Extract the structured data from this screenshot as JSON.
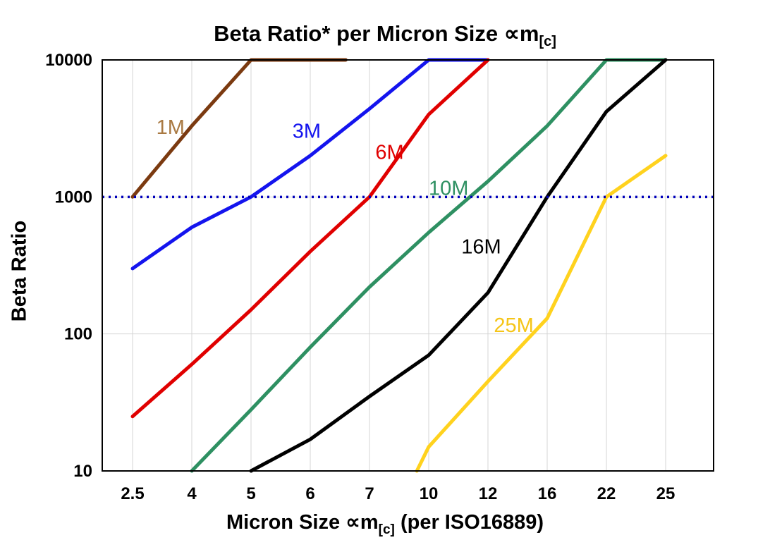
{
  "chart_data": {
    "type": "line",
    "title": {
      "main": "Beta Ratio* per Micron Size ∝m",
      "sub": "[c]"
    },
    "xlabel": {
      "main": "Micron Size ∝m",
      "sub": "[c]",
      "post": " (per ISO16889)"
    },
    "ylabel": "Beta Ratio",
    "x_categories": [
      "2.5",
      "4",
      "5",
      "6",
      "7",
      "10",
      "12",
      "16",
      "22",
      "25"
    ],
    "y_ticks": [
      10,
      100,
      1000,
      10000
    ],
    "y_scale": "log",
    "ylim": [
      10,
      10000
    ],
    "grid": "light gray vertical lines at each x category, horizontal lines at decades",
    "legend_position": "inline labels on lines",
    "reference_line": {
      "value": 1000,
      "color": "#0000BB",
      "style": "dotted"
    },
    "series": [
      {
        "name": "1M",
        "color": "#7B3A10",
        "label_color": "#A97942",
        "label_x": 0.4,
        "label_y": 3200,
        "points": [
          [
            0,
            1000
          ],
          [
            1,
            3300
          ],
          [
            2,
            10000
          ],
          [
            3.6,
            10000
          ]
        ]
      },
      {
        "name": "3M",
        "color": "#1414EE",
        "label_color": "#1414EE",
        "label_x": 2.7,
        "label_y": 3000,
        "points": [
          [
            0,
            300
          ],
          [
            1,
            600
          ],
          [
            2,
            1000
          ],
          [
            3,
            2000
          ],
          [
            4,
            4400
          ],
          [
            5,
            10000
          ],
          [
            6,
            10000
          ]
        ]
      },
      {
        "name": "6M",
        "color": "#E00000",
        "label_color": "#E00000",
        "label_x": 4.1,
        "label_y": 2100,
        "points": [
          [
            0,
            25
          ],
          [
            1,
            60
          ],
          [
            2,
            150
          ],
          [
            3,
            400
          ],
          [
            4,
            1000
          ],
          [
            5,
            4000
          ],
          [
            6,
            10000
          ]
        ]
      },
      {
        "name": "10M",
        "color": "#2E9062",
        "label_color": "#2E9062",
        "label_x": 5.0,
        "label_y": 1150,
        "points": [
          [
            1,
            10
          ],
          [
            2,
            28
          ],
          [
            3,
            80
          ],
          [
            4,
            220
          ],
          [
            5,
            550
          ],
          [
            6,
            1300
          ],
          [
            7,
            3300
          ],
          [
            8,
            10000
          ],
          [
            9,
            10000
          ]
        ]
      },
      {
        "name": "16M",
        "color": "#000000",
        "label_color": "#000000",
        "label_x": 5.55,
        "label_y": 430,
        "points": [
          [
            2,
            10
          ],
          [
            3,
            17
          ],
          [
            4,
            35
          ],
          [
            5,
            70
          ],
          [
            6,
            200
          ],
          [
            7,
            1000
          ],
          [
            8,
            4200
          ],
          [
            9,
            10000
          ]
        ]
      },
      {
        "name": "25M",
        "color": "#FFD21E",
        "label_color": "#F5C518",
        "label_x": 6.1,
        "label_y": 115,
        "points": [
          [
            4.8,
            10
          ],
          [
            5,
            15
          ],
          [
            6,
            45
          ],
          [
            7,
            130
          ],
          [
            8,
            1000
          ],
          [
            9,
            2000
          ]
        ]
      }
    ]
  }
}
